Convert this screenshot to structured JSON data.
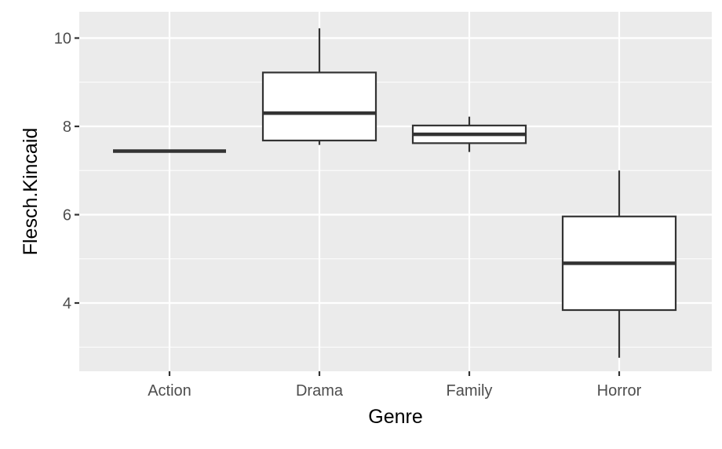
{
  "chart_data": {
    "type": "boxplot",
    "xlabel": "Genre",
    "ylabel": "Flesch.Kincaid",
    "categories": [
      "Action",
      "Drama",
      "Family",
      "Horror"
    ],
    "y_ticks": [
      4,
      6,
      8,
      10
    ],
    "y_tick_labels": [
      "4",
      "6",
      "8",
      "10"
    ],
    "ylim": [
      2.4,
      10.6
    ],
    "grid": true,
    "legend": "none",
    "boxes": [
      {
        "category": "Action",
        "min": 7.44,
        "q1": 7.44,
        "median": 7.44,
        "q3": 7.44,
        "max": 7.44
      },
      {
        "category": "Drama",
        "min": 7.58,
        "q1": 7.68,
        "median": 8.3,
        "q3": 9.22,
        "max": 10.22
      },
      {
        "category": "Family",
        "min": 7.42,
        "q1": 7.62,
        "median": 7.82,
        "q3": 8.02,
        "max": 8.22
      },
      {
        "category": "Horror",
        "min": 2.76,
        "q1": 3.84,
        "median": 4.9,
        "q3": 5.96,
        "max": 7.0
      }
    ]
  },
  "colors": {
    "panel_background": "#EBEBEB",
    "grid": "#FFFFFF",
    "box_fill": "#FFFFFF",
    "box_outline": "#333333",
    "tick_label": "#4D4D4D",
    "axis_title": "#000000"
  }
}
